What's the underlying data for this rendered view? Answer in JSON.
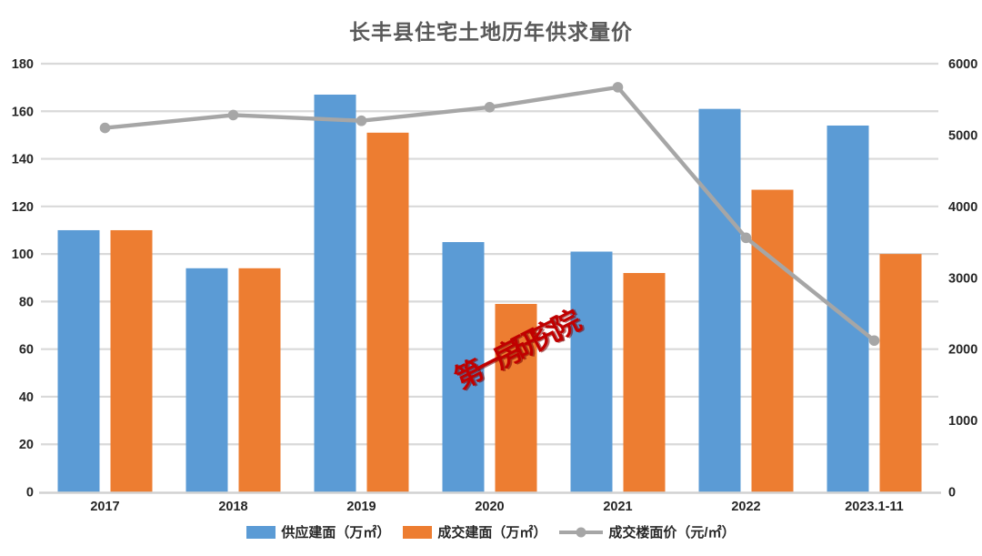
{
  "title": "长丰县住宅土地历年供求量价",
  "watermark": "第一房研究院",
  "colors": {
    "background": "#FFFFFF",
    "title_text": "#595959",
    "axis_text": "#262626",
    "gridline": "#D9D9D9",
    "baseline": "#D2D2D2",
    "watermark_text": "#C00000"
  },
  "chart_data": {
    "type": "bar",
    "subtype": "grouped-bars-with-secondary-axis-line",
    "title": "长丰县住宅土地历年供求量价",
    "categories": [
      "2017",
      "2018",
      "2019",
      "2020",
      "2021",
      "2022",
      "2023.1-11"
    ],
    "series": [
      {
        "name": "供应建面（万㎡）",
        "type": "bar",
        "axis": "left",
        "color": "#5B9BD5",
        "values": [
          110,
          94,
          167,
          105,
          101,
          161,
          154
        ]
      },
      {
        "name": "成交建面（万㎡）",
        "type": "bar",
        "axis": "left",
        "color": "#ED7D31",
        "values": [
          110,
          94,
          151,
          79,
          92,
          127,
          100
        ]
      },
      {
        "name": "成交楼面价（元/㎡）",
        "type": "line",
        "axis": "right",
        "marker": "circle",
        "color": "#A6A6A6",
        "values": [
          5100,
          5280,
          5200,
          5390,
          5670,
          3560,
          2120
        ]
      }
    ],
    "left_axis": {
      "min": 0,
      "max": 180,
      "step": 20
    },
    "right_axis": {
      "min": 0,
      "max": 6000,
      "step": 1000
    },
    "grid": true,
    "legend_position": "bottom"
  }
}
